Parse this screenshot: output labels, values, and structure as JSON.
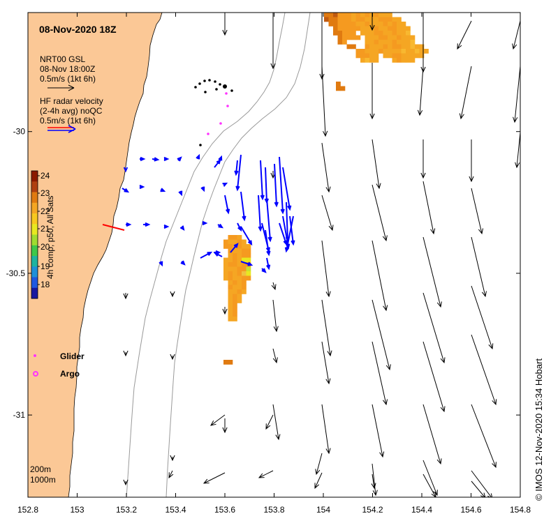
{
  "title": "08-Nov-2020 18Z",
  "legend": {
    "model_label": "NRT00 GSL",
    "model_time": "08-Nov 18:00Z",
    "model_scale": "0.5m/s (1kt 6h)",
    "radar_line1": "HF radar velocity",
    "radar_line2": "(2-4h avg) noQC",
    "radar_scale": "0.5m/s (1kt 6h)"
  },
  "colorbar": {
    "label": "4h comp, p50, All Sats",
    "ticks": [
      "24",
      "23",
      "22",
      "21",
      "20",
      "19",
      "18"
    ],
    "min": 17.5,
    "max": 24
  },
  "markers": {
    "glider_label": "Glider",
    "argo_label": "Argo",
    "glider_color": "#ff33ff",
    "argo_color": "#ff33ff"
  },
  "bathy": {
    "label_200": "200m",
    "label_1000": "1000m"
  },
  "credit": "© IMOS 12-Nov-2020 15:34 Hobart",
  "axes": {
    "x_ticks": [
      "152.8",
      "153",
      "153.2",
      "153.4",
      "153.6",
      "153.8",
      "154",
      "154.2",
      "154.4",
      "154.6",
      "154.8"
    ],
    "y_ticks": [
      "-30",
      "-30.5",
      "-31"
    ],
    "x_range": [
      152.8,
      154.8
    ],
    "y_range": [
      -31.29,
      -29.58
    ]
  },
  "colors": {
    "land": "#fbc896",
    "model_arrow": "#000000",
    "radar_arrow": "#0000ff",
    "radar_scale_top": "#ff0000",
    "sst_warm": "#f5a623",
    "sst_hot": "#e07a10"
  }
}
